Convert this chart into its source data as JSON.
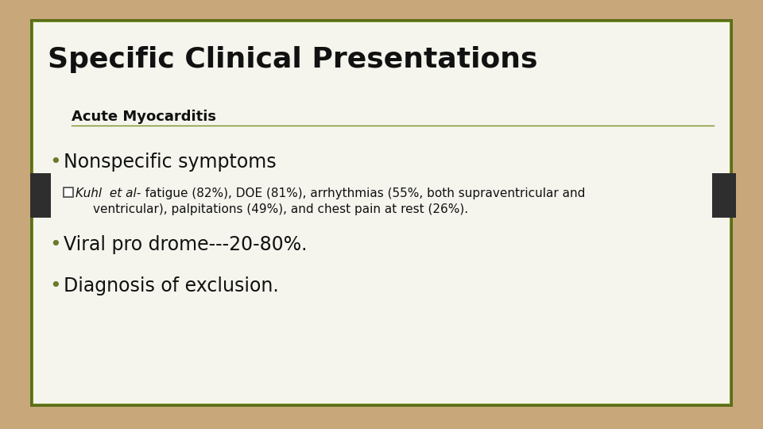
{
  "background_color": "#c8a87a",
  "slide_bg": "#f5f5ee",
  "slide_border_color_outer": "#5a6e1a",
  "slide_border_color_inner": "#7a9020",
  "title": "Specific Clinical Presentations",
  "title_fontsize": 26,
  "title_color": "#111111",
  "subtitle": "Acute Myocarditis",
  "subtitle_fontsize": 13,
  "subtitle_color": "#111111",
  "divider_color": "#7a9020",
  "dark_tab_color": "#2e2e2e",
  "bullet_color": "#6b7a2a",
  "bullet1": "Nonspecific symptoms",
  "bullet1_fontsize": 17,
  "kuhl_italic": "Kuhl  et al-",
  "kuhl_text": "   fatigue (82%), DOE (81%), arrhythmias (55%, both supraventricular and",
  "kuhl_text2": "ventricular), palpitations (49%), and chest pain at rest (26%).",
  "kuhl_fontsize": 11,
  "bullet2": "Viral pro drome---20-80%.",
  "bullet2_fontsize": 17,
  "bullet3": "Diagnosis of exclusion.",
  "bullet3_fontsize": 17,
  "checkbox_color": "#555555"
}
